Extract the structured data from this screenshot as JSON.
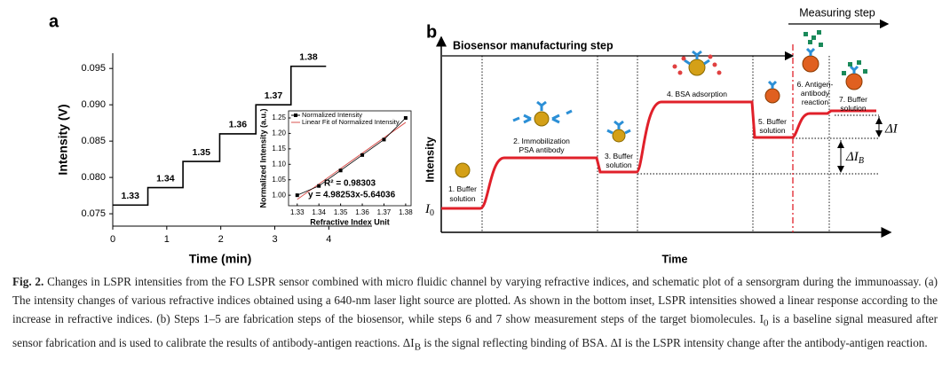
{
  "chart_data": [
    {
      "type": "line",
      "panel_label": "a",
      "x_label": "Time (min)",
      "y_label": "Intensity (V)",
      "x": [
        0,
        0.65,
        0.65,
        1.3,
        1.3,
        1.98,
        1.98,
        2.65,
        2.65,
        3.3,
        3.3,
        3.95
      ],
      "series": [
        {
          "color": "#000000",
          "values": [
            0.0762,
            0.0762,
            0.0786,
            0.0786,
            0.0822,
            0.0822,
            0.086,
            0.086,
            0.09,
            0.09,
            0.0953,
            0.0953
          ]
        }
      ],
      "step_labels": [
        "1.33",
        "1.34",
        "1.35",
        "1.36",
        "1.37",
        "1.38"
      ],
      "xlim": [
        0,
        4.8
      ],
      "xticks": [
        0,
        1,
        2,
        3,
        4
      ],
      "ylim": [
        0.0733,
        0.0971
      ],
      "yticks": [
        0.075,
        {
          "value": 0.08,
          "label": "0.080"
        },
        0.085,
        {
          "value": 0.09,
          "label": "0.090"
        },
        0.095
      ]
    },
    {
      "type": "scatter",
      "x_label": "Refractive Index Unit",
      "y_label": "Normalized Intensity (a.u.)",
      "series": [
        {
          "name": "Normalized Intensity",
          "color": "#000000",
          "x": [
            1.33,
            1.34,
            1.35,
            1.36,
            1.37,
            1.38
          ],
          "values": [
            1.0,
            1.03,
            1.08,
            1.13,
            1.18,
            1.25
          ]
        }
      ],
      "fit": {
        "name": "Linear Fit of Normalized Intensity",
        "color": "#d9534f",
        "slope": 4.98253,
        "intercept": -5.64036
      },
      "annotations": [
        "R² = 0.98303",
        "y = 4.98253x-5.64036"
      ],
      "xlim": [
        1.326,
        1.3825
      ],
      "xticks": [
        1.33,
        1.34,
        1.35,
        1.36,
        1.37,
        1.38
      ],
      "ylim": [
        0.966,
        1.273
      ],
      "yticks": [
        {
          "value": 1.0,
          "label": "1.00"
        },
        1.05,
        {
          "value": 1.1,
          "label": "1.10"
        },
        1.15,
        {
          "value": 1.2,
          "label": "1.20"
        },
        1.25
      ]
    }
  ],
  "diagram": {
    "panel_label": "b",
    "measuring_step": "Measuring step",
    "manufacturing_step": "Biosensor manufacturing step",
    "y_label": "Intensity",
    "x_label": "Time",
    "i0": {
      "base": "I",
      "sub": "0"
    },
    "delta_i": "ΔI",
    "delta_ib": {
      "base": "ΔI",
      "sub": "B"
    },
    "steps": [
      {
        "lines": [
          "1. Buffer",
          "solution"
        ]
      },
      {
        "lines": [
          "2. Immobilization",
          "PSA antibody"
        ]
      },
      {
        "lines": [
          "3. Buffer",
          "solution"
        ]
      },
      {
        "lines": [
          "4. BSA adsorption"
        ]
      },
      {
        "lines": [
          "5. Buffer",
          "solution"
        ]
      },
      {
        "lines": [
          "6. Antigen-",
          "antibody",
          "reaction"
        ]
      },
      {
        "lines": [
          "7. Buffer",
          "solution"
        ]
      }
    ]
  },
  "caption": {
    "label": "Fig. 2.",
    "parts": [
      " Changes in LSPR intensities from the FO LSPR sensor combined with micro fluidic channel by varying refractive indices, and schematic plot of a sensorgram during the immunoassay. (a) The intensity changes of various refractive indices obtained using a 640-nm laser light source are plotted. As shown in the bottom inset, LSPR intensities showed a linear response according to the increase in refractive indices. (b) Steps 1–5 are fabrication steps of the biosensor, while steps 6 and 7 show measurement steps of the target biomolecules. I",
      "0",
      " is a baseline signal measured after sensor fabrication and is used to calibrate the results of antibody-antigen reactions. ΔI",
      "B",
      " is the signal reflecting binding of BSA. ΔI is the LSPR intensity change after the antibody-antigen reaction."
    ]
  }
}
